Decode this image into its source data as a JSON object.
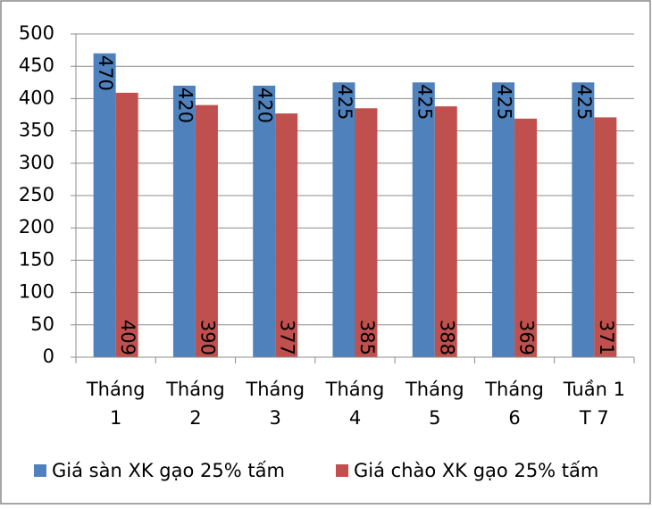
{
  "chart_data": {
    "type": "bar",
    "categories": [
      [
        "Tháng",
        "1"
      ],
      [
        "Tháng",
        "2"
      ],
      [
        "Tháng",
        "3"
      ],
      [
        "Tháng",
        "4"
      ],
      [
        "Tháng",
        "5"
      ],
      [
        "Tháng",
        "6"
      ],
      [
        "Tuần 1",
        "T 7"
      ]
    ],
    "series": [
      {
        "name": "Giá sàn XK gạo 25% tấm",
        "color": "#4f81bd",
        "values": [
          470,
          420,
          420,
          425,
          425,
          425,
          425
        ]
      },
      {
        "name": "Giá chào XK gạo 25% tấm",
        "color": "#c0504d",
        "values": [
          409,
          390,
          377,
          385,
          388,
          369,
          371
        ]
      }
    ],
    "ylim": [
      0,
      500
    ],
    "yticks": [
      0,
      50,
      100,
      150,
      200,
      250,
      300,
      350,
      400,
      450,
      500
    ],
    "grid": true,
    "legend": "bottom"
  }
}
